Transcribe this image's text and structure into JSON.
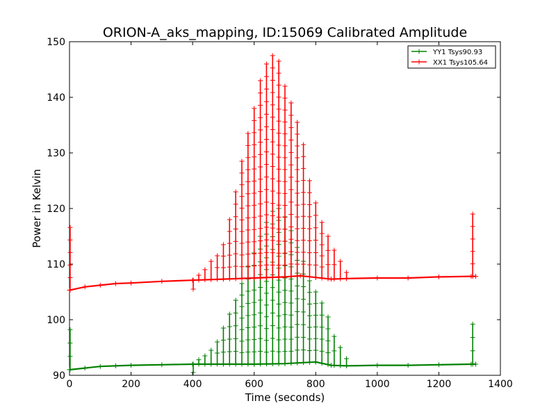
{
  "chart_data": {
    "type": "line",
    "title": "ORION-A_aks_mapping, ID:15069 Calibrated Amplitude",
    "xlabel": "Time (seconds)",
    "ylabel": "Power in Kelvin",
    "xlim": [
      0,
      1400
    ],
    "ylim": [
      90,
      150
    ],
    "x_ticks": [
      "0",
      "200",
      "400",
      "600",
      "800",
      "1000",
      "1200",
      "1400"
    ],
    "y_ticks": [
      "90",
      "100",
      "110",
      "120",
      "130",
      "140",
      "150"
    ],
    "legend_position": "top-right",
    "grid": false,
    "marker": "+",
    "series": [
      {
        "name": "YY1 Tsys90.93",
        "color": "#008000",
        "baseline": [
          [
            0,
            91.0
          ],
          [
            50,
            91.3
          ],
          [
            100,
            91.6
          ],
          [
            150,
            91.7
          ],
          [
            200,
            91.8
          ],
          [
            300,
            91.9
          ],
          [
            400,
            92.0
          ],
          [
            500,
            92.0
          ],
          [
            600,
            92.0
          ],
          [
            700,
            92.1
          ],
          [
            800,
            92.4
          ],
          [
            850,
            91.8
          ],
          [
            900,
            91.7
          ],
          [
            1000,
            91.8
          ],
          [
            1100,
            91.8
          ],
          [
            1200,
            91.9
          ],
          [
            1305,
            92.0
          ],
          [
            1320,
            92.0
          ]
        ],
        "spikes": [
          [
            2,
            98.2
          ],
          [
            402,
            90.5
          ],
          [
            420,
            92.8
          ],
          [
            440,
            93.5
          ],
          [
            460,
            94.5
          ],
          [
            480,
            96.0
          ],
          [
            500,
            98.5
          ],
          [
            520,
            101.0
          ],
          [
            540,
            103.5
          ],
          [
            560,
            106.5
          ],
          [
            580,
            109.5
          ],
          [
            600,
            112.0
          ],
          [
            620,
            115.0
          ],
          [
            640,
            117.5
          ],
          [
            660,
            119.5
          ],
          [
            680,
            120.0
          ],
          [
            700,
            118.5
          ],
          [
            720,
            116.0
          ],
          [
            740,
            113.0
          ],
          [
            760,
            110.5
          ],
          [
            780,
            107.0
          ],
          [
            800,
            105.0
          ],
          [
            820,
            103.0
          ],
          [
            840,
            100.5
          ],
          [
            860,
            97.0
          ],
          [
            880,
            95.0
          ],
          [
            900,
            93.0
          ],
          [
            1310,
            99.2
          ]
        ]
      },
      {
        "name": "XX1 Tsys105.64",
        "color": "#ff0000",
        "baseline": [
          [
            0,
            105.3
          ],
          [
            50,
            105.9
          ],
          [
            100,
            106.2
          ],
          [
            150,
            106.5
          ],
          [
            200,
            106.6
          ],
          [
            300,
            106.9
          ],
          [
            400,
            107.1
          ],
          [
            500,
            107.3
          ],
          [
            600,
            107.5
          ],
          [
            700,
            107.7
          ],
          [
            750,
            107.9
          ],
          [
            800,
            107.6
          ],
          [
            850,
            107.3
          ],
          [
            900,
            107.4
          ],
          [
            1000,
            107.5
          ],
          [
            1100,
            107.5
          ],
          [
            1200,
            107.7
          ],
          [
            1305,
            107.8
          ],
          [
            1320,
            107.8
          ]
        ],
        "spikes": [
          [
            2,
            116.6
          ],
          [
            402,
            105.5
          ],
          [
            420,
            108.0
          ],
          [
            440,
            109.0
          ],
          [
            460,
            110.5
          ],
          [
            480,
            111.5
          ],
          [
            500,
            113.5
          ],
          [
            520,
            118.0
          ],
          [
            540,
            123.0
          ],
          [
            560,
            128.5
          ],
          [
            580,
            133.5
          ],
          [
            600,
            138.0
          ],
          [
            620,
            143.0
          ],
          [
            640,
            146.0
          ],
          [
            660,
            147.5
          ],
          [
            680,
            146.5
          ],
          [
            700,
            142.0
          ],
          [
            720,
            139.0
          ],
          [
            740,
            135.5
          ],
          [
            760,
            131.5
          ],
          [
            780,
            125.0
          ],
          [
            800,
            121.0
          ],
          [
            820,
            117.5
          ],
          [
            840,
            115.0
          ],
          [
            860,
            112.5
          ],
          [
            880,
            110.5
          ],
          [
            900,
            108.5
          ],
          [
            1310,
            119.0
          ]
        ]
      }
    ]
  }
}
